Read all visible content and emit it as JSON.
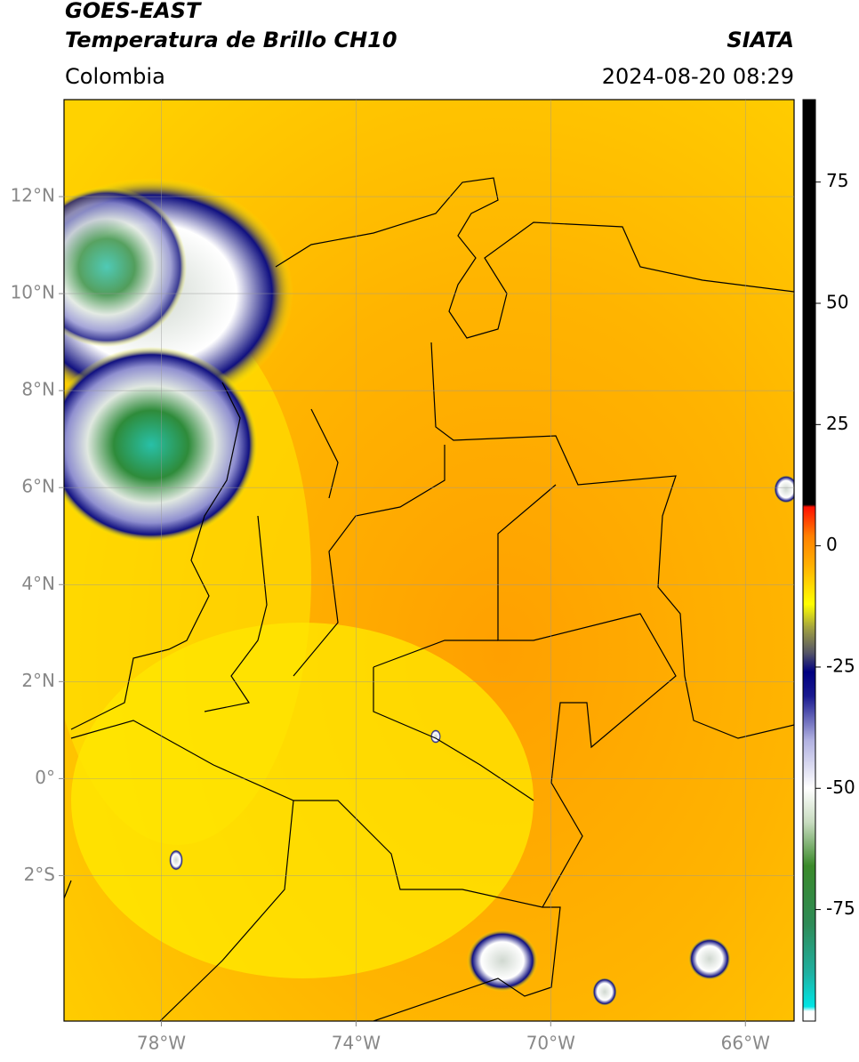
{
  "header": {
    "satellite": "GOES-EAST",
    "product": "Temperatura de Brillo CH10",
    "source": "SIATA",
    "region": "Colombia",
    "datetime": "2024-08-20 08:29"
  },
  "map": {
    "xlim": [
      -80,
      -65
    ],
    "ylim": [
      -5,
      14
    ],
    "xticks": [
      {
        "value": -78,
        "label": "78°W"
      },
      {
        "value": -74,
        "label": "74°W"
      },
      {
        "value": -70,
        "label": "70°W"
      },
      {
        "value": -66,
        "label": "66°W"
      }
    ],
    "yticks": [
      {
        "value": 12,
        "label": "12°N"
      },
      {
        "value": 10,
        "label": "10°N"
      },
      {
        "value": 8,
        "label": "8°N"
      },
      {
        "value": 6,
        "label": "6°N"
      },
      {
        "value": 4,
        "label": "4°N"
      },
      {
        "value": 2,
        "label": "2°N"
      },
      {
        "value": 0,
        "label": "0°"
      },
      {
        "value": -2,
        "label": "2°S"
      }
    ],
    "grid": true
  },
  "colorbar": {
    "vlim": [
      -98,
      92
    ],
    "ticks": [
      75,
      50,
      25,
      0,
      -25,
      -50,
      -75
    ],
    "stops": [
      {
        "value": -98,
        "color": "#ffffff"
      },
      {
        "value": -96,
        "color": "#ffffff"
      },
      {
        "value": -95,
        "color": "#00e5e5"
      },
      {
        "value": -88,
        "color": "#1fb0a0"
      },
      {
        "value": -78,
        "color": "#2e8b57"
      },
      {
        "value": -66,
        "color": "#3a8a2a"
      },
      {
        "value": -57,
        "color": "#c8dcc0"
      },
      {
        "value": -50,
        "color": "#ffffff"
      },
      {
        "value": -40,
        "color": "#b0b0e0"
      },
      {
        "value": -31,
        "color": "#1a1a90"
      },
      {
        "value": -26,
        "color": "#000080"
      },
      {
        "value": -22,
        "color": "#555566"
      },
      {
        "value": -17,
        "color": "#a0a040"
      },
      {
        "value": -12,
        "color": "#ffff00"
      },
      {
        "value": -4,
        "color": "#ffb000"
      },
      {
        "value": 2,
        "color": "#ff8000"
      },
      {
        "value": 8,
        "color": "#ff1000"
      },
      {
        "value": 8.5,
        "color": "#000000"
      },
      {
        "value": 92,
        "color": "#000000"
      }
    ]
  }
}
